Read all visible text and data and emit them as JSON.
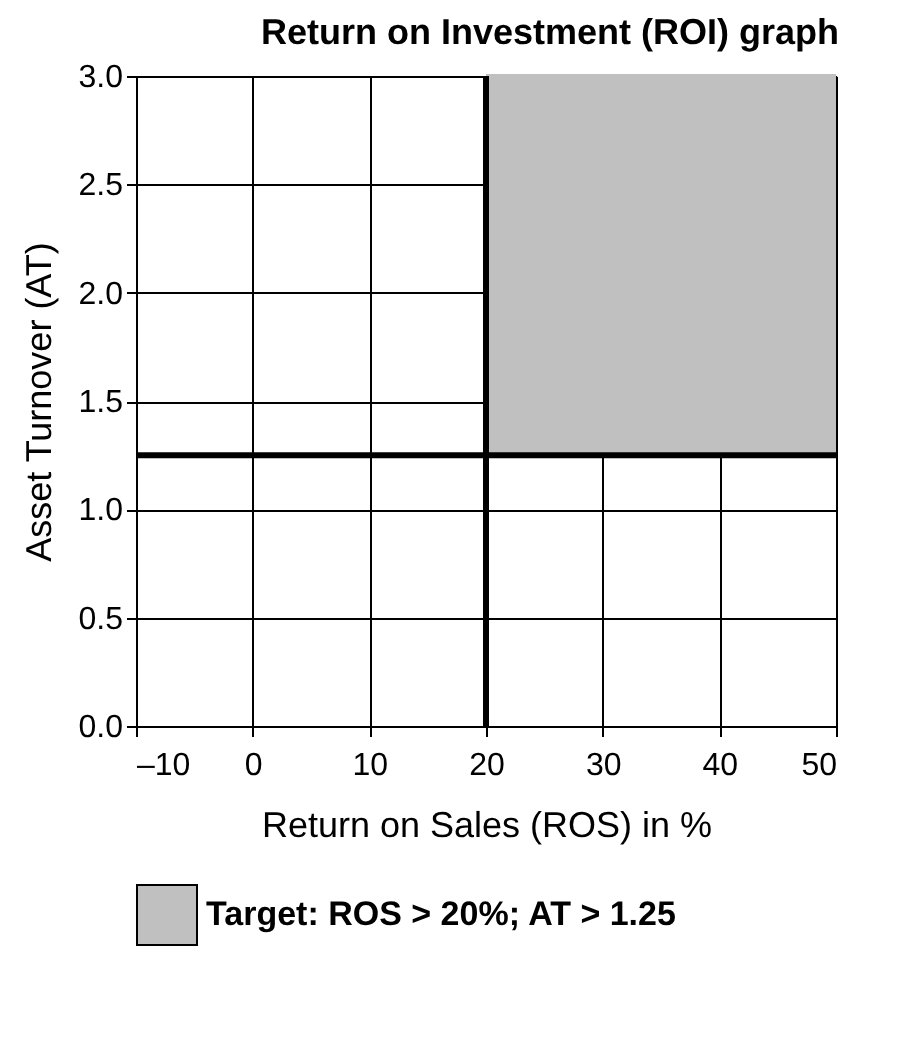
{
  "chart_data": {
    "type": "line",
    "title": "Return on Investment (ROI) graph",
    "xlabel": "Return on Sales (ROS) in %",
    "ylabel": "Asset Turnover (AT)",
    "series": [
      {
        "name": "Target: ROS > 20%; AT > 1.25",
        "color": "#c0c0c0",
        "x": [
          20,
          50
        ],
        "values": [
          3,
          3
        ],
        "lower": [
          1.25,
          1.25
        ],
        "upper": [
          3,
          3
        ]
      }
    ],
    "xlim": [
      -10,
      50
    ],
    "xticks": [
      {
        "value": -10,
        "label": "–10"
      },
      0,
      10,
      20,
      30,
      40,
      50
    ],
    "ylim": [
      0,
      3
    ],
    "yticks": [
      {
        "value": 0,
        "label": "0.0"
      },
      {
        "value": 0.5,
        "label": "0.5"
      },
      {
        "value": 1,
        "label": "1.0"
      },
      {
        "value": 1.5,
        "label": "1.5"
      },
      {
        "value": 2,
        "label": "2.0"
      },
      {
        "value": 2.5,
        "label": "2.5"
      },
      {
        "value": 3,
        "label": "3.0"
      }
    ],
    "ref_lines": [
      {
        "axis": "x",
        "value": 20,
        "color": "#000000"
      },
      {
        "axis": "y",
        "value": 1.25,
        "color": "#000000"
      }
    ],
    "grid": true,
    "legend": "bottom"
  }
}
